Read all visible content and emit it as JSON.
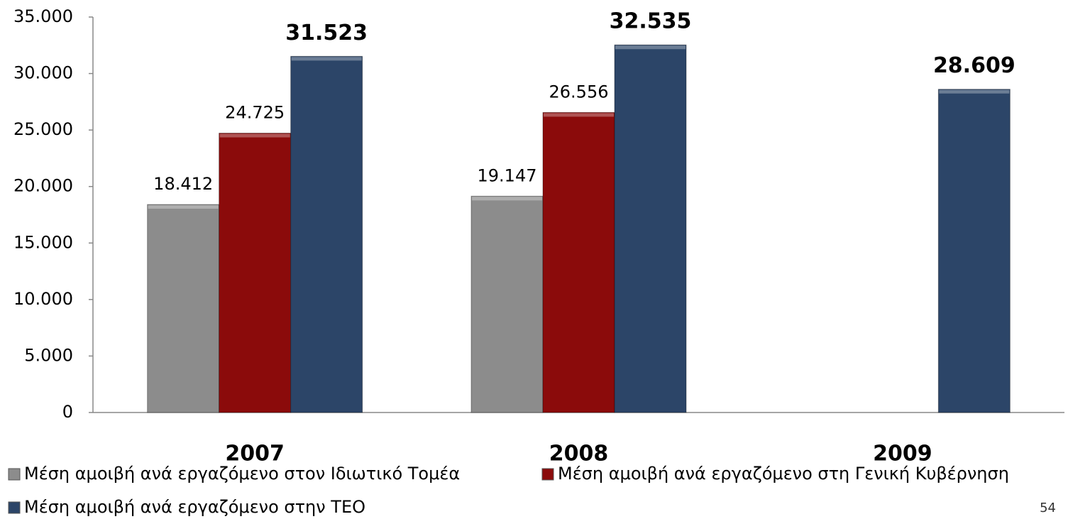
{
  "chart_data": {
    "type": "bar",
    "categories": [
      "2007",
      "2008",
      "2009"
    ],
    "series": [
      {
        "name": "Μέση αμοιβή ανά εργαζόμενο στον Ιδιωτικό Τομέα",
        "color": "#8c8c8c",
        "values": [
          18412,
          19147,
          null
        ],
        "value_labels": [
          "18.412",
          "19.147",
          null
        ]
      },
      {
        "name": "Μέση αμοιβή ανά εργαζόμενο στη Γενική Κυβέρνηση",
        "color": "#8b0b0b",
        "values": [
          24725,
          26556,
          null
        ],
        "value_labels": [
          "24.725",
          "26.556",
          null
        ]
      },
      {
        "name": "Μέση αμοιβή ανά εργαζόμενο στην  ΤΕΟ",
        "color": "#2c4568",
        "values": [
          31523,
          32535,
          28609
        ],
        "value_labels": [
          "31.523",
          "32.535",
          "28.609"
        ],
        "label_weight": "bold"
      }
    ],
    "ylim": [
      0,
      35000
    ],
    "yticks": [
      0,
      {
        "value": 5000,
        "label": "5.000"
      },
      {
        "value": 10000,
        "label": "10.000"
      },
      {
        "value": 15000,
        "label": "15.000"
      },
      {
        "value": 20000,
        "label": "20.000"
      },
      {
        "value": 25000,
        "label": "25.000"
      },
      {
        "value": 30000,
        "label": "30.000"
      },
      {
        "value": 35000,
        "label": "35.000"
      }
    ],
    "grid": false,
    "legend": "bottom"
  },
  "page_number": "54"
}
